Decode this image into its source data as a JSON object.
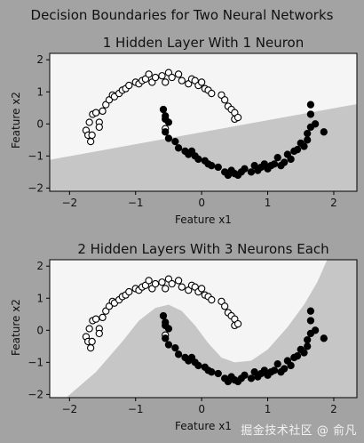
{
  "figure_title": "Decision Boundaries for Two Neural Networks",
  "watermark": "掘金技术社区 @ 俞凡",
  "colors": {
    "figure_bg": "#a3a3a3",
    "class_light": "#f5f5f5",
    "class_dark": "#c6c6c6",
    "point_open_fill": "#ffffff",
    "point_filled": "#000000",
    "axis": "#000000"
  },
  "chart_data": [
    {
      "type": "scatter",
      "title": "1 Hidden Layer With 1 Neuron",
      "xlabel": "Feature x1",
      "ylabel": "Feature x2",
      "xlim": [
        -2.3,
        2.35
      ],
      "ylim": [
        -2.1,
        2.2
      ],
      "xticks": [
        -2,
        -1,
        0,
        1,
        2
      ],
      "yticks": [
        -2,
        -1,
        0,
        1,
        2
      ],
      "grid": false,
      "boundary": {
        "kind": "line",
        "line": [
          [
            -2.3,
            -1.12
          ],
          [
            2.35,
            0.62
          ]
        ]
      },
      "series": [
        {
          "marker": "open",
          "points": [
            [
              -1.75,
              -0.2
            ],
            [
              -1.72,
              -0.35
            ],
            [
              -1.68,
              -0.55
            ],
            [
              -1.66,
              -0.35
            ],
            [
              -1.7,
              0.05
            ],
            [
              -1.65,
              0.3
            ],
            [
              -1.6,
              0.35
            ],
            [
              -1.55,
              0.05
            ],
            [
              -1.55,
              -0.1
            ],
            [
              -1.5,
              0.4
            ],
            [
              -1.45,
              0.6
            ],
            [
              -1.4,
              0.75
            ],
            [
              -1.35,
              0.9
            ],
            [
              -1.32,
              0.85
            ],
            [
              -1.25,
              0.95
            ],
            [
              -1.2,
              1.05
            ],
            [
              -1.15,
              1.1
            ],
            [
              -1.1,
              1.2
            ],
            [
              -1.0,
              1.3
            ],
            [
              -0.95,
              1.25
            ],
            [
              -0.9,
              1.35
            ],
            [
              -0.85,
              1.4
            ],
            [
              -0.8,
              1.55
            ],
            [
              -0.75,
              1.3
            ],
            [
              -0.7,
              1.45
            ],
            [
              -0.6,
              1.5
            ],
            [
              -0.55,
              1.3
            ],
            [
              -0.5,
              1.6
            ],
            [
              -0.45,
              1.45
            ],
            [
              -0.35,
              1.55
            ],
            [
              -0.3,
              1.35
            ],
            [
              -0.2,
              1.25
            ],
            [
              -0.15,
              1.4
            ],
            [
              -0.1,
              1.35
            ],
            [
              -0.05,
              1.2
            ],
            [
              0.0,
              1.3
            ],
            [
              0.05,
              1.1
            ],
            [
              0.1,
              1.05
            ],
            [
              0.15,
              0.95
            ],
            [
              0.3,
              0.9
            ],
            [
              0.35,
              0.75
            ],
            [
              0.4,
              0.55
            ],
            [
              0.45,
              0.45
            ],
            [
              0.5,
              0.35
            ],
            [
              0.5,
              0.15
            ],
            [
              0.55,
              0.2
            ],
            [
              -0.55,
              -0.15
            ]
          ]
        },
        {
          "marker": "filled",
          "points": [
            [
              -0.58,
              0.45
            ],
            [
              -0.55,
              0.25
            ],
            [
              -0.55,
              0.15
            ],
            [
              -0.5,
              0.05
            ],
            [
              -0.55,
              -0.25
            ],
            [
              -0.5,
              -0.45
            ],
            [
              -0.4,
              -0.55
            ],
            [
              -0.35,
              -0.75
            ],
            [
              -0.25,
              -0.85
            ],
            [
              -0.2,
              -0.95
            ],
            [
              -0.15,
              -0.85
            ],
            [
              -0.1,
              -1.0
            ],
            [
              -0.05,
              -1.1
            ],
            [
              0.05,
              -1.15
            ],
            [
              0.1,
              -1.25
            ],
            [
              0.15,
              -1.3
            ],
            [
              0.25,
              -1.35
            ],
            [
              0.35,
              -1.5
            ],
            [
              0.4,
              -1.6
            ],
            [
              0.45,
              -1.45
            ],
            [
              0.5,
              -1.55
            ],
            [
              0.55,
              -1.6
            ],
            [
              0.6,
              -1.5
            ],
            [
              0.65,
              -1.4
            ],
            [
              0.75,
              -1.5
            ],
            [
              0.8,
              -1.3
            ],
            [
              0.85,
              -1.45
            ],
            [
              0.9,
              -1.35
            ],
            [
              0.95,
              -1.25
            ],
            [
              1.0,
              -1.4
            ],
            [
              1.05,
              -1.3
            ],
            [
              1.1,
              -1.25
            ],
            [
              1.15,
              -1.05
            ],
            [
              1.2,
              -1.3
            ],
            [
              1.25,
              -1.2
            ],
            [
              1.3,
              -0.95
            ],
            [
              1.35,
              -1.1
            ],
            [
              1.4,
              -0.85
            ],
            [
              1.45,
              -0.8
            ],
            [
              1.5,
              -0.6
            ],
            [
              1.55,
              -0.7
            ],
            [
              1.6,
              -0.5
            ],
            [
              1.6,
              -0.3
            ],
            [
              1.65,
              -0.1
            ],
            [
              1.65,
              0.3
            ],
            [
              1.65,
              0.6
            ],
            [
              1.72,
              0.0
            ],
            [
              1.85,
              -0.25
            ]
          ]
        }
      ]
    },
    {
      "type": "scatter",
      "title": "2 Hidden Layers With 3 Neurons Each",
      "xlabel": "Feature x1",
      "ylabel": "Feature x2",
      "xlim": [
        -2.3,
        2.35
      ],
      "ylim": [
        -2.1,
        2.2
      ],
      "xticks": [
        -2,
        -1,
        0,
        1,
        2
      ],
      "yticks": [
        -2,
        -1,
        0,
        1,
        2
      ],
      "grid": false,
      "boundary": {
        "kind": "curve",
        "curve": [
          [
            -2.05,
            -2.1
          ],
          [
            -1.6,
            -1.3
          ],
          [
            -1.2,
            -0.35
          ],
          [
            -0.95,
            0.3
          ],
          [
            -0.7,
            0.7
          ],
          [
            -0.5,
            0.8
          ],
          [
            -0.3,
            0.6
          ],
          [
            -0.1,
            0.15
          ],
          [
            0.1,
            -0.4
          ],
          [
            0.3,
            -0.85
          ],
          [
            0.5,
            -1.0
          ],
          [
            0.75,
            -0.95
          ],
          [
            1.0,
            -0.6
          ],
          [
            1.3,
            0.1
          ],
          [
            1.55,
            0.8
          ],
          [
            1.75,
            1.5
          ],
          [
            1.9,
            2.2
          ]
        ]
      },
      "series": [
        {
          "marker": "open",
          "points": [
            [
              -1.75,
              -0.2
            ],
            [
              -1.72,
              -0.35
            ],
            [
              -1.68,
              -0.55
            ],
            [
              -1.66,
              -0.35
            ],
            [
              -1.7,
              0.05
            ],
            [
              -1.65,
              0.3
            ],
            [
              -1.6,
              0.35
            ],
            [
              -1.55,
              0.05
            ],
            [
              -1.55,
              -0.1
            ],
            [
              -1.5,
              0.4
            ],
            [
              -1.45,
              0.6
            ],
            [
              -1.4,
              0.75
            ],
            [
              -1.35,
              0.9
            ],
            [
              -1.32,
              0.85
            ],
            [
              -1.25,
              0.95
            ],
            [
              -1.2,
              1.05
            ],
            [
              -1.15,
              1.1
            ],
            [
              -1.1,
              1.2
            ],
            [
              -1.0,
              1.3
            ],
            [
              -0.95,
              1.25
            ],
            [
              -0.9,
              1.35
            ],
            [
              -0.85,
              1.4
            ],
            [
              -0.8,
              1.55
            ],
            [
              -0.75,
              1.3
            ],
            [
              -0.7,
              1.45
            ],
            [
              -0.6,
              1.5
            ],
            [
              -0.55,
              1.3
            ],
            [
              -0.5,
              1.6
            ],
            [
              -0.45,
              1.45
            ],
            [
              -0.35,
              1.55
            ],
            [
              -0.3,
              1.35
            ],
            [
              -0.2,
              1.25
            ],
            [
              -0.15,
              1.4
            ],
            [
              -0.1,
              1.35
            ],
            [
              -0.05,
              1.2
            ],
            [
              0.0,
              1.3
            ],
            [
              0.05,
              1.1
            ],
            [
              0.1,
              1.05
            ],
            [
              0.15,
              0.95
            ],
            [
              0.3,
              0.9
            ],
            [
              0.35,
              0.75
            ],
            [
              0.4,
              0.55
            ],
            [
              0.45,
              0.45
            ],
            [
              0.5,
              0.35
            ],
            [
              0.5,
              0.15
            ],
            [
              0.55,
              0.2
            ],
            [
              -0.55,
              -0.15
            ]
          ]
        },
        {
          "marker": "filled",
          "points": [
            [
              -0.58,
              0.45
            ],
            [
              -0.55,
              0.25
            ],
            [
              -0.55,
              0.15
            ],
            [
              -0.5,
              0.05
            ],
            [
              -0.55,
              -0.25
            ],
            [
              -0.5,
              -0.45
            ],
            [
              -0.4,
              -0.55
            ],
            [
              -0.35,
              -0.75
            ],
            [
              -0.25,
              -0.85
            ],
            [
              -0.2,
              -0.95
            ],
            [
              -0.15,
              -0.85
            ],
            [
              -0.1,
              -1.0
            ],
            [
              -0.05,
              -1.1
            ],
            [
              0.05,
              -1.15
            ],
            [
              0.1,
              -1.25
            ],
            [
              0.15,
              -1.3
            ],
            [
              0.25,
              -1.35
            ],
            [
              0.35,
              -1.5
            ],
            [
              0.4,
              -1.6
            ],
            [
              0.45,
              -1.45
            ],
            [
              0.5,
              -1.55
            ],
            [
              0.55,
              -1.6
            ],
            [
              0.6,
              -1.5
            ],
            [
              0.65,
              -1.4
            ],
            [
              0.75,
              -1.5
            ],
            [
              0.8,
              -1.3
            ],
            [
              0.85,
              -1.45
            ],
            [
              0.9,
              -1.35
            ],
            [
              0.95,
              -1.25
            ],
            [
              1.0,
              -1.4
            ],
            [
              1.05,
              -1.3
            ],
            [
              1.1,
              -1.25
            ],
            [
              1.15,
              -1.05
            ],
            [
              1.2,
              -1.3
            ],
            [
              1.25,
              -1.2
            ],
            [
              1.3,
              -0.95
            ],
            [
              1.35,
              -1.1
            ],
            [
              1.4,
              -0.85
            ],
            [
              1.45,
              -0.8
            ],
            [
              1.5,
              -0.6
            ],
            [
              1.55,
              -0.7
            ],
            [
              1.6,
              -0.5
            ],
            [
              1.6,
              -0.3
            ],
            [
              1.65,
              -0.1
            ],
            [
              1.65,
              0.3
            ],
            [
              1.65,
              0.6
            ],
            [
              1.72,
              0.0
            ],
            [
              1.85,
              -0.25
            ]
          ]
        }
      ]
    }
  ]
}
